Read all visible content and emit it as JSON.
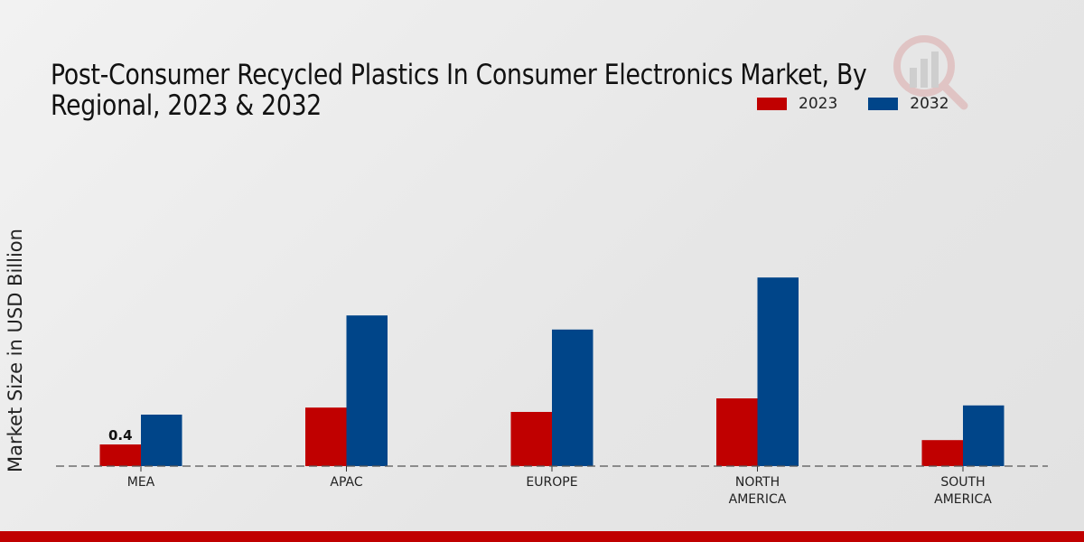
{
  "title_lines": [
    "Post-Consumer Recycled Plastics In Consumer Electronics Market, By",
    "Regional, 2023 & 2032"
  ],
  "colors": {
    "series_2023": "#c00000",
    "series_2032": "#004589",
    "footer": "#c00000"
  },
  "chart_data": {
    "type": "bar",
    "title": "Post-Consumer Recycled Plastics In Consumer Electronics Market, By Regional, 2023 & 2032",
    "xlabel": "",
    "ylabel": "Market Size in USD Billion",
    "categories": [
      "MEA",
      "APAC",
      "EUROPE",
      "NORTH AMERICA",
      "SOUTH AMERICA"
    ],
    "category_lines": [
      [
        "MEA"
      ],
      [
        "APAC"
      ],
      [
        "EUROPE"
      ],
      [
        "NORTH",
        "AMERICA"
      ],
      [
        "SOUTH",
        "AMERICA"
      ]
    ],
    "series": [
      {
        "name": "2023",
        "color": "#c00000",
        "values": [
          0.4,
          1.08,
          1.0,
          1.25,
          0.48
        ]
      },
      {
        "name": "2032",
        "color": "#004589",
        "values": [
          0.95,
          2.78,
          2.52,
          3.48,
          1.12
        ]
      }
    ],
    "data_labels": [
      {
        "series": "2023",
        "category": "MEA",
        "text": "0.4"
      }
    ],
    "ylim": [
      0,
      4.2
    ],
    "grid": false,
    "baseline": "dashed",
    "legend": "top-right"
  }
}
